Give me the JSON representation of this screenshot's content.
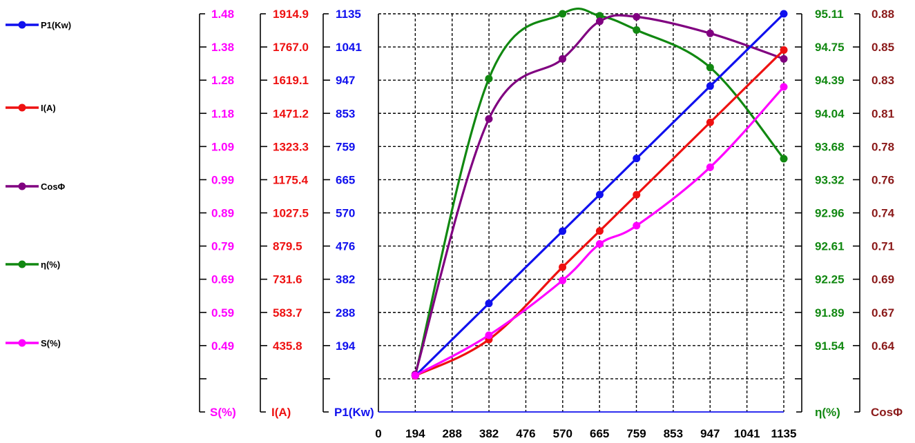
{
  "chart_data": {
    "type": "line",
    "x": {
      "ticks": [
        "0",
        "194",
        "288",
        "382",
        "476",
        "570",
        "665",
        "759",
        "853",
        "947",
        "1041",
        "1135"
      ],
      "range": [
        100,
        1135
      ]
    },
    "axes": [
      {
        "id": "s",
        "title": "S(%)",
        "color": "#ff00ff",
        "side": "left",
        "ticks": [
          "1.48",
          "1.38",
          "1.28",
          "1.18",
          "1.09",
          "0.99",
          "0.89",
          "0.79",
          "0.69",
          "0.59",
          "0.49"
        ],
        "min": 0.39,
        "max": 1.48
      },
      {
        "id": "i",
        "title": "I(A)",
        "color": "#ee1111",
        "side": "left",
        "ticks": [
          "1914.9",
          "1767.0",
          "1619.1",
          "1471.2",
          "1323.3",
          "1175.4",
          "1027.5",
          "879.5",
          "731.6",
          "583.7",
          "435.8"
        ],
        "min": 287.9,
        "max": 1914.9
      },
      {
        "id": "p1",
        "title": "P1(Kw)",
        "color": "#1010ee",
        "side": "left",
        "ticks": [
          "1135",
          "1041",
          "947",
          "853",
          "759",
          "665",
          "570",
          "476",
          "382",
          "288",
          "194"
        ],
        "min": 100,
        "max": 1135
      },
      {
        "id": "eta",
        "title": "η(%)",
        "color": "#118811",
        "side": "right",
        "ticks": [
          "95.11",
          "94.75",
          "94.39",
          "94.04",
          "93.68",
          "93.32",
          "92.96",
          "92.61",
          "92.25",
          "91.89",
          "91.54"
        ],
        "min": 91.18,
        "max": 95.11
      },
      {
        "id": "cos",
        "title": "CosΦ",
        "color": "#8b1a1a",
        "side": "right",
        "ticks": [
          "0.88",
          "0.85",
          "0.83",
          "0.81",
          "0.78",
          "0.76",
          "0.74",
          "0.71",
          "0.69",
          "0.67",
          "0.64"
        ],
        "min": 0.615,
        "max": 0.88
      }
    ],
    "series": [
      {
        "name": "P1(Kw)",
        "color": "#1010ee",
        "axis": "p1",
        "points": [
          [
            194,
            194
          ],
          [
            382,
            382
          ],
          [
            570,
            570
          ],
          [
            665,
            665
          ],
          [
            759,
            759
          ],
          [
            947,
            947
          ],
          [
            1135,
            1135
          ]
        ]
      },
      {
        "name": "I(A)",
        "color": "#ee1111",
        "axis": "i",
        "points": [
          [
            194,
            435.8
          ],
          [
            382,
            583.7
          ],
          [
            570,
            879.5
          ],
          [
            665,
            1027.5
          ],
          [
            759,
            1175.4
          ],
          [
            947,
            1471.2
          ],
          [
            1135,
            1767.0
          ]
        ]
      },
      {
        "name": "CosΦ",
        "color": "#800080",
        "axis": "cos",
        "points": [
          [
            194,
            0.64
          ],
          [
            382,
            0.81
          ],
          [
            570,
            0.85
          ],
          [
            665,
            0.875
          ],
          [
            759,
            0.878
          ],
          [
            947,
            0.867
          ],
          [
            1135,
            0.85
          ]
        ]
      },
      {
        "name": "η(%)",
        "color": "#118811",
        "axis": "eta",
        "points": [
          [
            194,
            91.54
          ],
          [
            382,
            94.47
          ],
          [
            570,
            95.11
          ],
          [
            665,
            95.09
          ],
          [
            759,
            94.95
          ],
          [
            947,
            94.58
          ],
          [
            1135,
            93.68
          ]
        ]
      },
      {
        "name": "S(%)",
        "color": "#ff00ff",
        "axis": "s",
        "points": [
          [
            194,
            0.49
          ],
          [
            382,
            0.6
          ],
          [
            570,
            0.75
          ],
          [
            665,
            0.85
          ],
          [
            759,
            0.9
          ],
          [
            947,
            1.06
          ],
          [
            1135,
            1.28
          ]
        ]
      }
    ],
    "grid": true,
    "legend": "left"
  }
}
